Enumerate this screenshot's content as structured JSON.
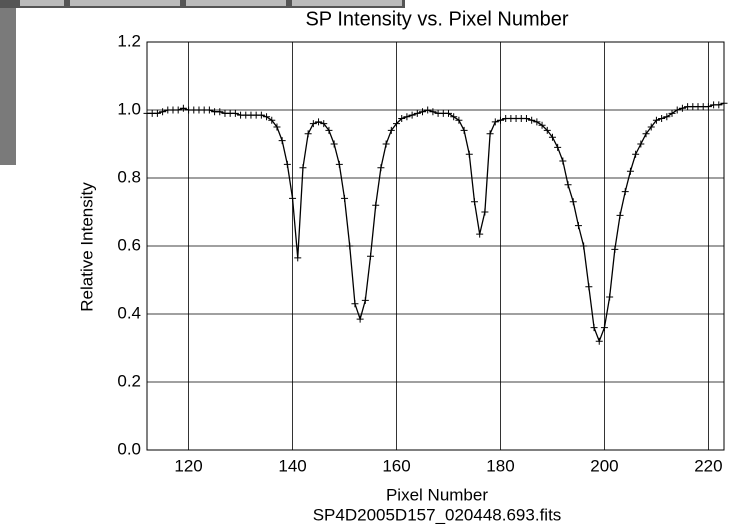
{
  "chart_data": {
    "type": "line",
    "title": "SP Intensity vs. Pixel Number",
    "x_label": "Pixel Number",
    "subtitle": "SP4D2005D157_020448.693.fits",
    "y_label": "Relative Intensity",
    "x": [
      112,
      113,
      114,
      115,
      116,
      117,
      118,
      119,
      120,
      121,
      122,
      123,
      124,
      125,
      126,
      127,
      128,
      129,
      130,
      131,
      132,
      133,
      134,
      135,
      136,
      137,
      138,
      139,
      140,
      141,
      142,
      143,
      144,
      145,
      146,
      147,
      148,
      149,
      150,
      151,
      152,
      153,
      154,
      155,
      156,
      157,
      158,
      159,
      160,
      161,
      162,
      163,
      164,
      165,
      166,
      167,
      168,
      169,
      170,
      171,
      172,
      173,
      174,
      175,
      176,
      177,
      178,
      179,
      180,
      181,
      182,
      183,
      184,
      185,
      186,
      187,
      188,
      189,
      190,
      191,
      192,
      193,
      194,
      195,
      196,
      197,
      198,
      199,
      200,
      201,
      202,
      203,
      204,
      205,
      206,
      207,
      208,
      209,
      210,
      211,
      212,
      213,
      214,
      215,
      216,
      217,
      218,
      219,
      220,
      221,
      222,
      223
    ],
    "series": [
      {
        "color": "#000000",
        "values": [
          0.99,
          0.99,
          0.99,
          0.995,
          1.0,
          1.0,
          1.0,
          1.005,
          1.0,
          1.0,
          1.0,
          1.0,
          1.0,
          0.995,
          0.995,
          0.99,
          0.99,
          0.99,
          0.985,
          0.985,
          0.985,
          0.985,
          0.985,
          0.98,
          0.97,
          0.95,
          0.91,
          0.84,
          0.74,
          0.565,
          0.83,
          0.93,
          0.96,
          0.965,
          0.96,
          0.94,
          0.9,
          0.84,
          0.74,
          0.6,
          0.43,
          0.385,
          0.44,
          0.57,
          0.72,
          0.83,
          0.9,
          0.94,
          0.96,
          0.975,
          0.98,
          0.985,
          0.99,
          0.995,
          1.0,
          0.995,
          0.99,
          0.99,
          0.99,
          0.98,
          0.97,
          0.94,
          0.87,
          0.73,
          0.635,
          0.7,
          0.93,
          0.965,
          0.97,
          0.975,
          0.975,
          0.975,
          0.975,
          0.975,
          0.97,
          0.965,
          0.955,
          0.94,
          0.92,
          0.89,
          0.85,
          0.78,
          0.73,
          0.66,
          0.6,
          0.48,
          0.36,
          0.32,
          0.36,
          0.45,
          0.59,
          0.69,
          0.76,
          0.82,
          0.87,
          0.9,
          0.93,
          0.95,
          0.97,
          0.975,
          0.98,
          0.99,
          1.0,
          1.005,
          1.01,
          1.01,
          1.01,
          1.01,
          1.01,
          1.015,
          1.015,
          1.02
        ]
      }
    ],
    "xlim": [
      112,
      223
    ],
    "ylim": [
      0,
      1.2
    ],
    "xticks": [
      120,
      140,
      160,
      180,
      200,
      220
    ],
    "yticks": [
      {
        "value": 0,
        "label": "0.0"
      },
      {
        "value": 0.2,
        "label": "0.2"
      },
      {
        "value": 0.4,
        "label": "0.4"
      },
      {
        "value": 0.6,
        "label": "0.6"
      },
      {
        "value": 0.8,
        "label": "0.8"
      },
      {
        "value": 1.0,
        "label": "1.0"
      },
      {
        "value": 1.2,
        "label": "1.2"
      }
    ],
    "grid": true,
    "markers": "+"
  }
}
